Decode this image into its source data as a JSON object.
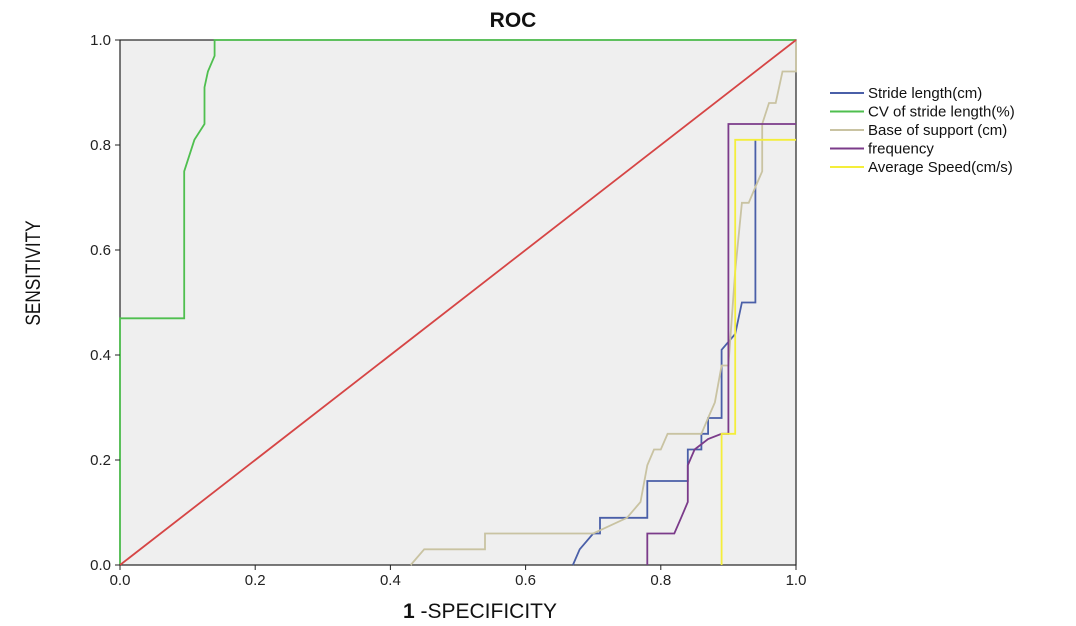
{
  "chart_data": {
    "type": "line",
    "title": "ROC",
    "xlabel_prefix": "1",
    "xlabel": " -SPECIFICITY",
    "ylabel": "SENSITIVITY",
    "xlim": [
      0,
      1
    ],
    "ylim": [
      0,
      1
    ],
    "xticks": [
      "0.0",
      "0.2",
      "0.4",
      "0.6",
      "0.8",
      "1.0"
    ],
    "yticks": [
      "0.0",
      "0.2",
      "0.4",
      "0.6",
      "0.8",
      "1.0"
    ],
    "grid": false,
    "legend_position": "right",
    "plot_background": "#efefef",
    "series": [
      {
        "name": "Stride length(cm)",
        "color": "#4a5fa8",
        "points": [
          [
            0.67,
            0
          ],
          [
            0.68,
            0.03
          ],
          [
            0.7,
            0.06
          ],
          [
            0.71,
            0.06
          ],
          [
            0.71,
            0.09
          ],
          [
            0.75,
            0.09
          ],
          [
            0.78,
            0.09
          ],
          [
            0.78,
            0.16
          ],
          [
            0.84,
            0.16
          ],
          [
            0.84,
            0.22
          ],
          [
            0.86,
            0.22
          ],
          [
            0.86,
            0.25
          ],
          [
            0.87,
            0.25
          ],
          [
            0.87,
            0.28
          ],
          [
            0.89,
            0.28
          ],
          [
            0.89,
            0.41
          ],
          [
            0.91,
            0.44
          ],
          [
            0.92,
            0.5
          ],
          [
            0.94,
            0.5
          ],
          [
            0.94,
            0.81
          ]
        ]
      },
      {
        "name": "CV of stride length(%)",
        "color": "#4fbf4f",
        "points": [
          [
            0,
            0
          ],
          [
            0,
            0.47
          ],
          [
            0.095,
            0.47
          ],
          [
            0.095,
            0.75
          ],
          [
            0.11,
            0.81
          ],
          [
            0.125,
            0.84
          ],
          [
            0.125,
            0.91
          ],
          [
            0.13,
            0.94
          ],
          [
            0.14,
            0.97
          ],
          [
            0.14,
            1.0
          ],
          [
            0.15,
            1.0
          ],
          [
            1.0,
            1.0
          ]
        ]
      },
      {
        "name": "Base of support (cm)",
        "color": "#c9c3a2",
        "points": [
          [
            0.43,
            0
          ],
          [
            0.45,
            0.03
          ],
          [
            0.54,
            0.03
          ],
          [
            0.54,
            0.06
          ],
          [
            0.7,
            0.06
          ],
          [
            0.75,
            0.09
          ],
          [
            0.77,
            0.12
          ],
          [
            0.78,
            0.19
          ],
          [
            0.79,
            0.22
          ],
          [
            0.8,
            0.22
          ],
          [
            0.81,
            0.25
          ],
          [
            0.86,
            0.25
          ],
          [
            0.87,
            0.28
          ],
          [
            0.88,
            0.31
          ],
          [
            0.89,
            0.38
          ],
          [
            0.9,
            0.38
          ],
          [
            0.91,
            0.56
          ],
          [
            0.92,
            0.69
          ],
          [
            0.93,
            0.69
          ],
          [
            0.94,
            0.72
          ],
          [
            0.95,
            0.75
          ],
          [
            0.95,
            0.84
          ],
          [
            0.96,
            0.88
          ],
          [
            0.97,
            0.88
          ],
          [
            0.98,
            0.94
          ],
          [
            1.0,
            0.94
          ],
          [
            1.0,
            1.0
          ]
        ]
      },
      {
        "name": "frequency",
        "color": "#7b3b8a",
        "points": [
          [
            0.78,
            0
          ],
          [
            0.78,
            0.06
          ],
          [
            0.82,
            0.06
          ],
          [
            0.83,
            0.09
          ],
          [
            0.84,
            0.12
          ],
          [
            0.84,
            0.19
          ],
          [
            0.85,
            0.22
          ],
          [
            0.87,
            0.24
          ],
          [
            0.89,
            0.25
          ],
          [
            0.9,
            0.25
          ],
          [
            0.9,
            0.84
          ],
          [
            1.0,
            0.84
          ]
        ]
      },
      {
        "name": "Average Speed(cm/s)",
        "color": "#f4ee3a",
        "points": [
          [
            0.89,
            0
          ],
          [
            0.89,
            0.25
          ],
          [
            0.91,
            0.25
          ],
          [
            0.91,
            0.81
          ],
          [
            1.0,
            0.81
          ]
        ]
      },
      {
        "name": "",
        "color": "#d64545",
        "points": [
          [
            0,
            0
          ],
          [
            1,
            1
          ]
        ]
      }
    ]
  }
}
